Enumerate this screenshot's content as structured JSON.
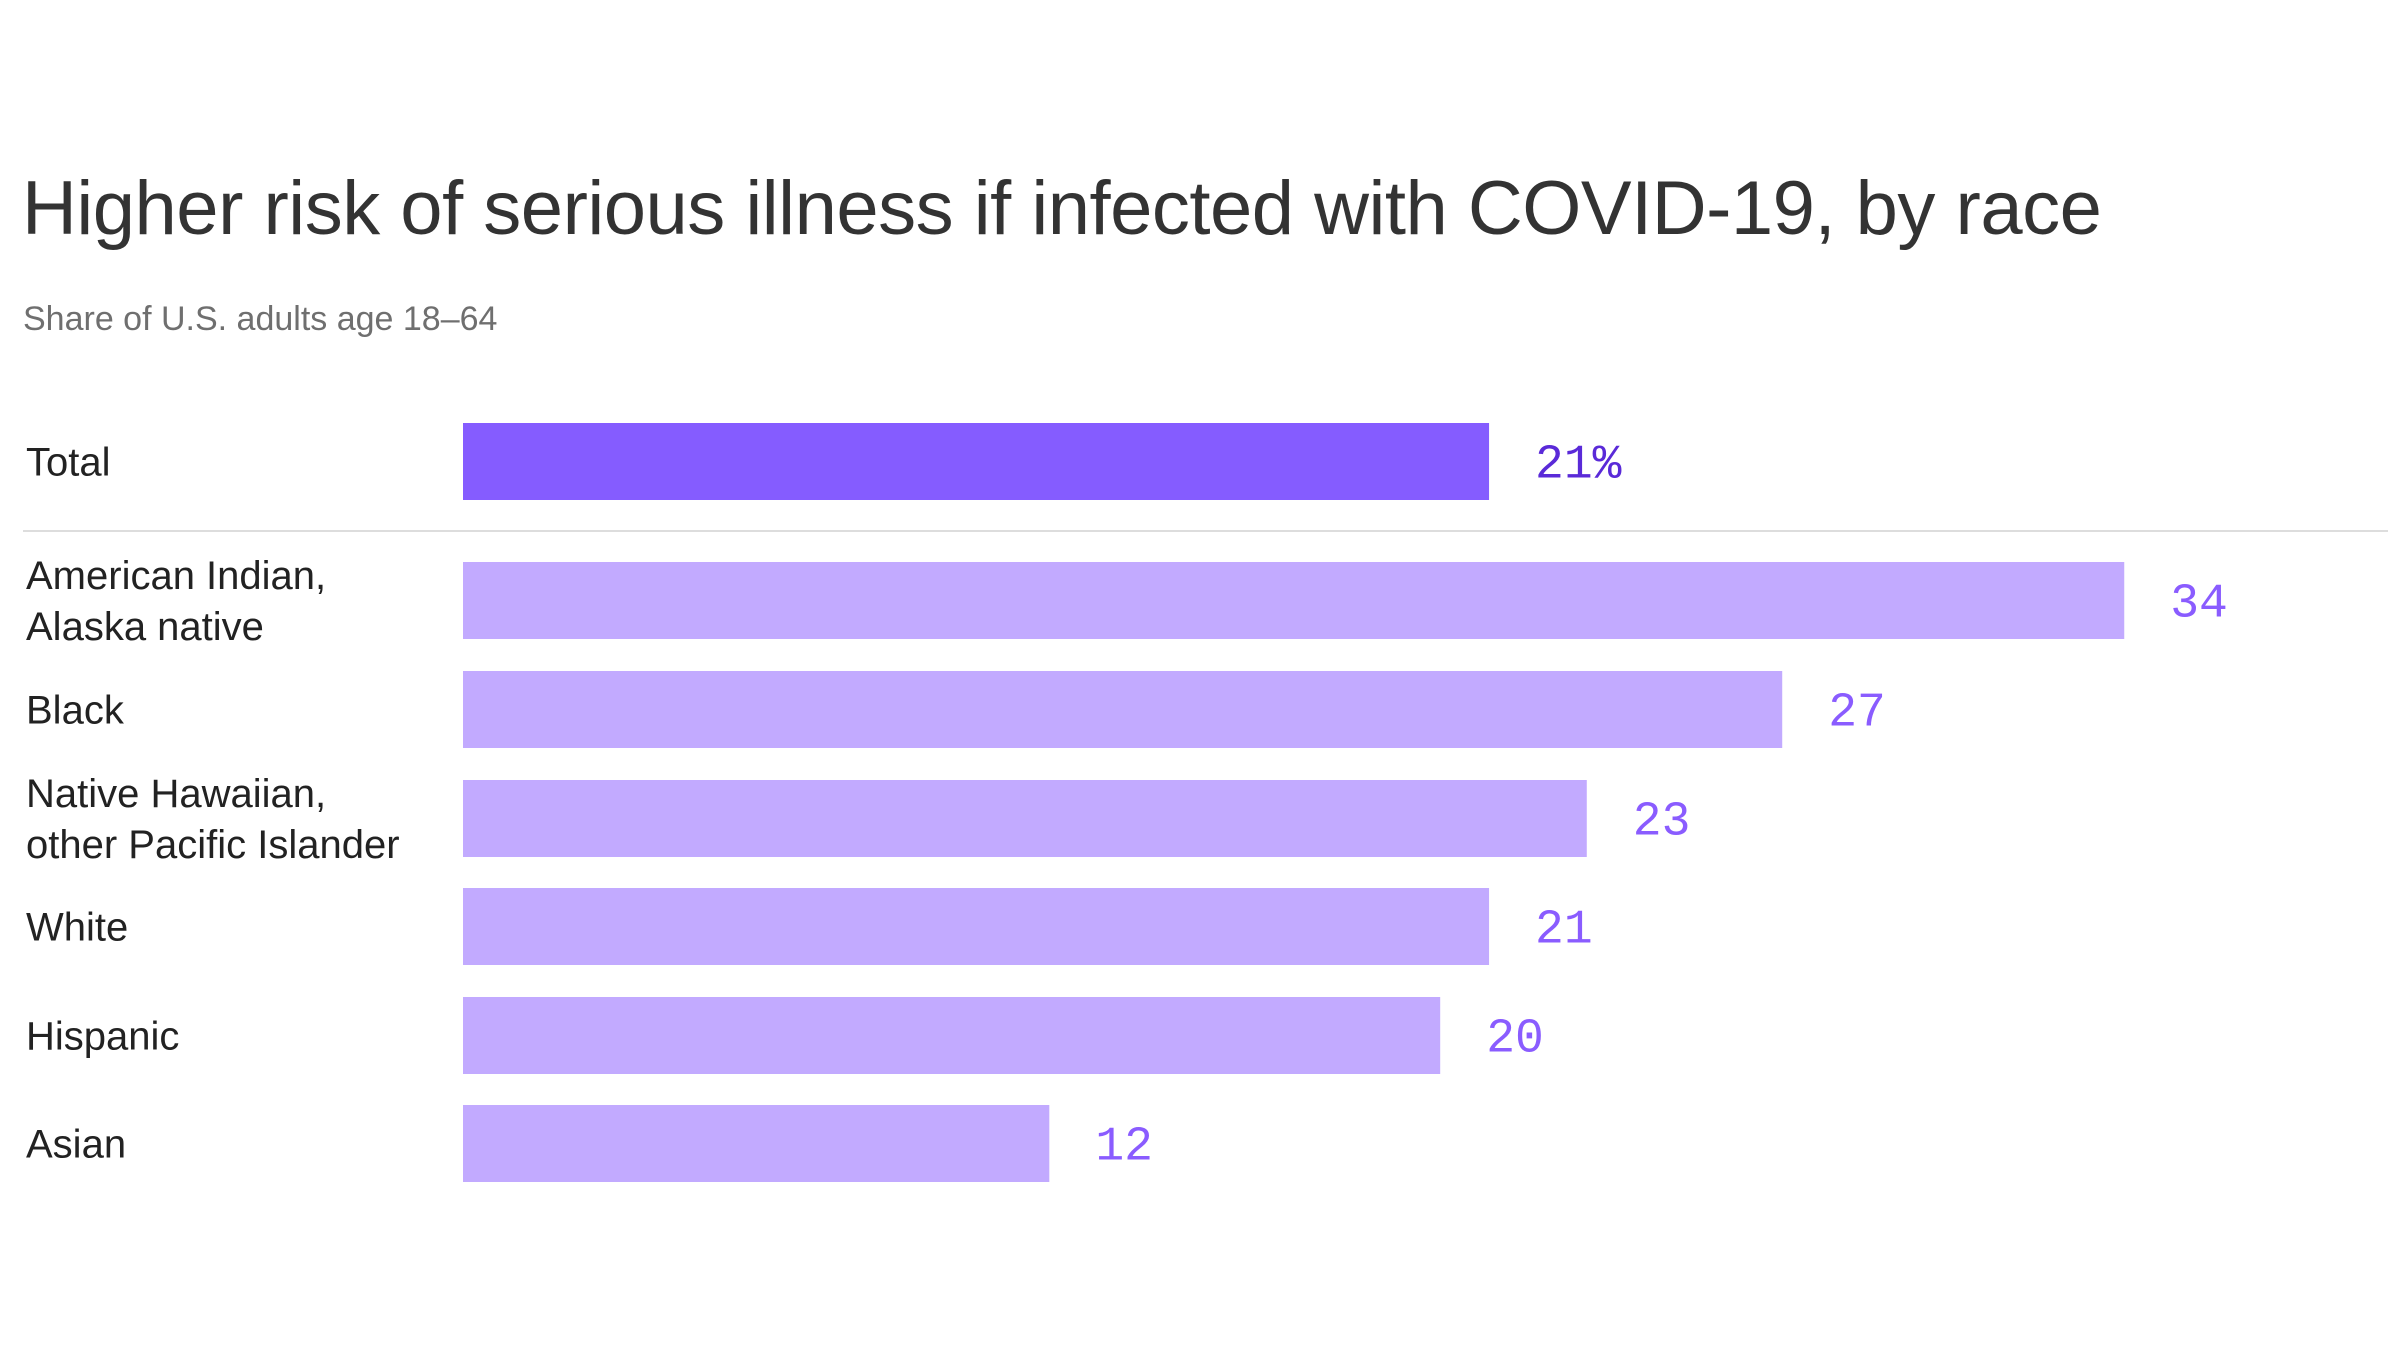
{
  "chart_data": {
    "type": "bar",
    "orientation": "horizontal",
    "title": "Higher risk of serious illness if infected with COVID-19, by race",
    "subtitle": "Share of U.S. adults age 18–64",
    "categories": [
      [
        "Total"
      ],
      [
        "American Indian,",
        "Alaska native"
      ],
      [
        "Black"
      ],
      [
        "Native Hawaiian,",
        "other Pacific Islander"
      ],
      [
        "White"
      ],
      [
        "Hispanic"
      ],
      [
        "Asian"
      ]
    ],
    "values": [
      21,
      34,
      27,
      23,
      21,
      20,
      12
    ],
    "value_labels": [
      "21%",
      "34",
      "27",
      "23",
      "21",
      "20",
      "12"
    ],
    "unit": "%",
    "grid": false,
    "colors": {
      "total_bar": "#855cff",
      "bar": "#c2aaff",
      "total_label": "#5a2ad8",
      "value_label": "#8a5cff",
      "separator": "#dddddd"
    }
  }
}
